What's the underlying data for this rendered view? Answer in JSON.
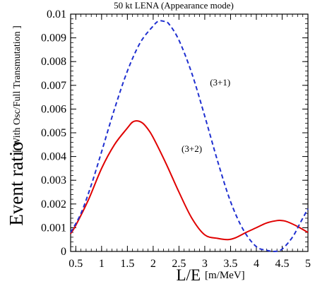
{
  "chart_data": {
    "type": "line",
    "title": "50 kt LENA (Appearance mode)",
    "xlabel": "L/E",
    "xlabel_unit": "[m/MeV]",
    "ylabel": "Event ratio",
    "ylabel_sub": "[ With Osc/Full Transmutation ]",
    "xlim": [
      0.4,
      5.0
    ],
    "ylim": [
      0,
      0.01
    ],
    "xticks": [
      "0.5",
      "1",
      "1.5",
      "2",
      "2.5",
      "3",
      "3.5",
      "4",
      "4.5",
      "5"
    ],
    "yticks": [
      "0",
      "0.001",
      "0.002",
      "0.003",
      "0.004",
      "0.005",
      "0.006",
      "0.007",
      "0.008",
      "0.009",
      "0.01"
    ],
    "series": [
      {
        "name": "(3+2)",
        "color": "#e00000",
        "style": "solid",
        "x": [
          0.4,
          0.5,
          0.75,
          1.0,
          1.25,
          1.5,
          1.6,
          1.7,
          1.8,
          1.9,
          2.0,
          2.25,
          2.5,
          2.75,
          3.0,
          3.25,
          3.45,
          3.6,
          3.8,
          4.0,
          4.2,
          4.4,
          4.5,
          4.6,
          4.8,
          5.0
        ],
        "values": [
          0.00075,
          0.0011,
          0.0022,
          0.0035,
          0.0045,
          0.0052,
          0.00545,
          0.0055,
          0.0054,
          0.00515,
          0.0048,
          0.0037,
          0.0025,
          0.0014,
          0.0007,
          0.00055,
          0.0005,
          0.00058,
          0.0008,
          0.001,
          0.0012,
          0.0013,
          0.0013,
          0.00125,
          0.00105,
          0.0008
        ]
      },
      {
        "name": "(3+1)",
        "color": "#1f2fd0",
        "style": "dashed",
        "x": [
          0.4,
          0.6,
          0.8,
          1.0,
          1.25,
          1.5,
          1.75,
          2.0,
          2.1,
          2.2,
          2.3,
          2.5,
          2.75,
          3.0,
          3.25,
          3.5,
          3.75,
          4.0,
          4.2,
          4.35,
          4.5,
          4.7,
          4.85,
          5.0
        ],
        "values": [
          0.0008,
          0.0016,
          0.0028,
          0.0042,
          0.006,
          0.0076,
          0.0088,
          0.0095,
          0.0097,
          0.0097,
          0.0096,
          0.0089,
          0.0075,
          0.0057,
          0.0038,
          0.0021,
          0.0009,
          0.0002,
          5e-05,
          0.0,
          0.0001,
          0.0006,
          0.0012,
          0.0018
        ]
      }
    ],
    "annotations": [
      {
        "text": "(3+1)",
        "x": 3.1,
        "y": 0.007
      },
      {
        "text": "(3+2)",
        "x": 2.55,
        "y": 0.0042
      }
    ],
    "grid": false,
    "legend": "none"
  }
}
